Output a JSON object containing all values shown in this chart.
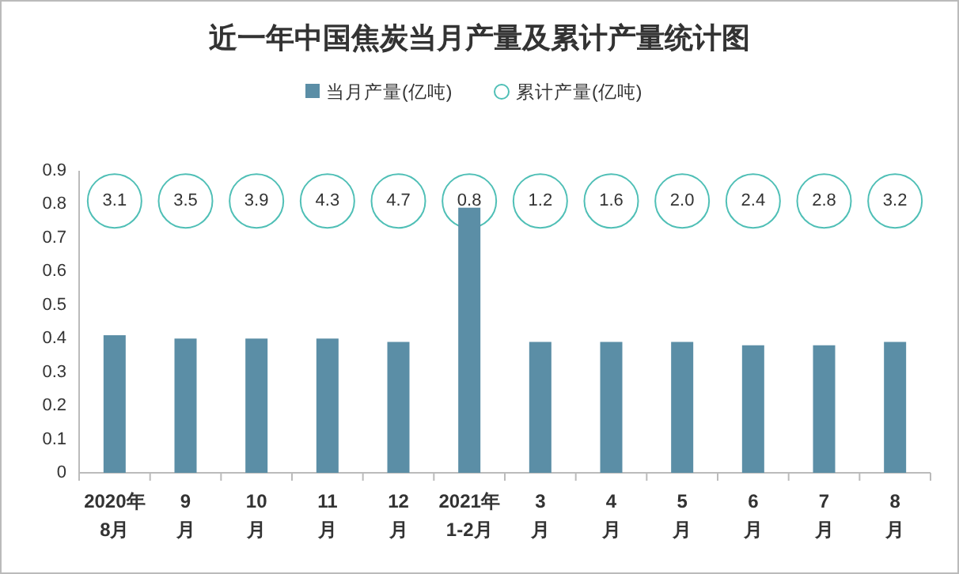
{
  "chart_data": {
    "type": "bar",
    "title": "近一年中国焦炭当月产量及累计产量统计图",
    "categories": [
      "2020年\n8月",
      "9\n月",
      "10\n月",
      "11\n月",
      "12\n月",
      "2021年\n1-2月",
      "3\n月",
      "4\n月",
      "5\n月",
      "6\n月",
      "7\n月",
      "8\n月"
    ],
    "series": [
      {
        "name": "当月产量(亿吨)",
        "color": "#5b8ea6",
        "values": [
          0.41,
          0.4,
          0.4,
          0.4,
          0.39,
          0.79,
          0.39,
          0.39,
          0.39,
          0.38,
          0.38,
          0.39
        ]
      },
      {
        "name": "累计产量(亿吨)",
        "type": "scatter",
        "color": "#4fbfb6",
        "values": [
          null,
          null,
          null,
          null,
          null,
          null,
          null,
          null,
          null,
          null,
          null,
          null
        ]
      }
    ],
    "annotations": [
      {
        "text": "3.1",
        "x": "2020年\n8月",
        "y": 0.81
      },
      {
        "text": "3.5",
        "x": "9\n月",
        "y": 0.81
      },
      {
        "text": "3.9",
        "x": "10\n月",
        "y": 0.81
      },
      {
        "text": "4.3",
        "x": "11\n月",
        "y": 0.81
      },
      {
        "text": "4.7",
        "x": "12\n月",
        "y": 0.81
      },
      {
        "text": "0.8",
        "x": "2021年\n1-2月",
        "y": 0.81
      },
      {
        "text": "1.2",
        "x": "3\n月",
        "y": 0.81
      },
      {
        "text": "1.6",
        "x": "4\n月",
        "y": 0.81
      },
      {
        "text": "2.0",
        "x": "5\n月",
        "y": 0.81
      },
      {
        "text": "2.4",
        "x": "6\n月",
        "y": 0.81
      },
      {
        "text": "2.8",
        "x": "7\n月",
        "y": 0.81
      },
      {
        "text": "3.2",
        "x": "8\n月",
        "y": 0.81
      }
    ],
    "ylim": [
      0,
      0.9
    ],
    "yticks": [
      0,
      0.1,
      0.2,
      0.3,
      0.4,
      0.5,
      0.6,
      0.7,
      0.8,
      0.9
    ],
    "legend": "top",
    "grid": false
  }
}
